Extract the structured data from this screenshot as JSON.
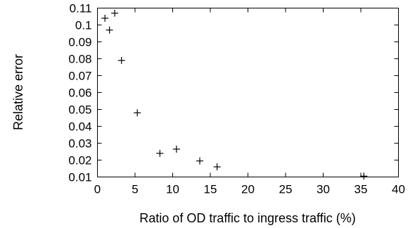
{
  "chart_data": {
    "type": "scatter",
    "title": "",
    "xlabel": "Ratio of OD traffic to ingress traffic (%)",
    "ylabel": "Relative error",
    "xlim": [
      0,
      40
    ],
    "ylim": [
      0.01,
      0.11
    ],
    "x_ticks": [
      0,
      5,
      10,
      15,
      20,
      25,
      30,
      35,
      40
    ],
    "y_ticks": [
      0.01,
      0.02,
      0.03,
      0.04,
      0.05,
      0.06,
      0.07,
      0.08,
      0.09,
      0.1,
      0.11
    ],
    "x_tick_labels": [
      "0",
      "5",
      "10",
      "15",
      "20",
      "25",
      "30",
      "35",
      "40"
    ],
    "y_tick_labels": [
      "0.01",
      "0.02",
      "0.03",
      "0.04",
      "0.05",
      "0.06",
      "0.07",
      "0.08",
      "0.09",
      "0.1",
      "0.11"
    ],
    "grid": false,
    "legend": "none",
    "marker": "plus",
    "color": "#000000",
    "series": [
      {
        "points": [
          {
            "x": 1.0,
            "y": 0.104
          },
          {
            "x": 1.6,
            "y": 0.097
          },
          {
            "x": 2.3,
            "y": 0.107
          },
          {
            "x": 3.2,
            "y": 0.079
          },
          {
            "x": 5.3,
            "y": 0.048
          },
          {
            "x": 8.3,
            "y": 0.024
          },
          {
            "x": 10.5,
            "y": 0.0265
          },
          {
            "x": 13.6,
            "y": 0.0195
          },
          {
            "x": 15.9,
            "y": 0.016
          },
          {
            "x": 35.4,
            "y": 0.0105
          }
        ]
      }
    ]
  }
}
